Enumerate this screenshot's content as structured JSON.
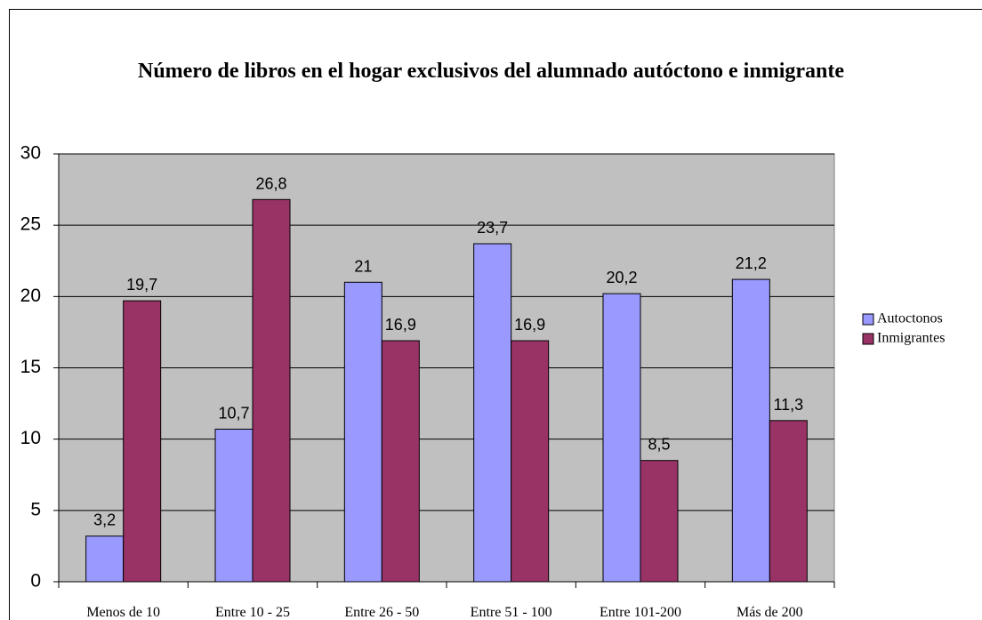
{
  "chart_data": {
    "type": "bar",
    "title": "Número de libros en el hogar exclusivos del alumnado autóctono e inmigrante",
    "categories": [
      "Menos de 10",
      "Entre 10 - 25",
      "Entre 26 - 50",
      "Entre 51 - 100",
      "Entre 101-200",
      "Más de 200"
    ],
    "series": [
      {
        "name": "Autoctonos",
        "color": "#9999ff",
        "values": [
          3.2,
          10.7,
          21,
          23.7,
          20.2,
          21.2
        ],
        "value_labels": [
          "3,2",
          "10,7",
          "21",
          "23,7",
          "20,2",
          "21,2"
        ]
      },
      {
        "name": "Inmigrantes",
        "color": "#993366",
        "values": [
          19.7,
          26.8,
          16.9,
          16.9,
          8.5,
          11.3
        ],
        "value_labels": [
          "19,7",
          "26,8",
          "16,9",
          "16,9",
          "8,5",
          "11,3"
        ]
      }
    ],
    "ylim": [
      0,
      30
    ],
    "yticks": [
      0,
      5,
      10,
      15,
      20,
      25,
      30
    ],
    "grid": true,
    "legend": "right"
  }
}
